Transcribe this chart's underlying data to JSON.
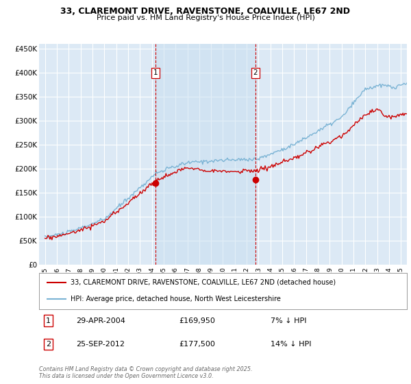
{
  "title": "33, CLAREMONT DRIVE, RAVENSTONE, COALVILLE, LE67 2ND",
  "subtitle": "Price paid vs. HM Land Registry's House Price Index (HPI)",
  "background_color": "#ffffff",
  "plot_bg_color": "#dce9f5",
  "grid_color": "#ffffff",
  "hpi_color": "#7ab3d4",
  "price_color": "#cc0000",
  "vline_color": "#cc0000",
  "purchases": [
    {
      "date_num": 2004.33,
      "price": 169950,
      "label": "1",
      "date_str": "29-APR-2004",
      "pct": "7% ↓ HPI"
    },
    {
      "date_num": 2012.73,
      "price": 177500,
      "label": "2",
      "date_str": "25-SEP-2012",
      "pct": "14% ↓ HPI"
    }
  ],
  "legend_line1": "33, CLAREMONT DRIVE, RAVENSTONE, COALVILLE, LE67 2ND (detached house)",
  "legend_line2": "HPI: Average price, detached house, North West Leicestershire",
  "footnote": "Contains HM Land Registry data © Crown copyright and database right 2025.\nThis data is licensed under the Open Government Licence v3.0.",
  "ylim": [
    0,
    460000
  ],
  "xlim": [
    1994.5,
    2025.5
  ],
  "yticks": [
    0,
    50000,
    100000,
    150000,
    200000,
    250000,
    300000,
    350000,
    400000,
    450000
  ],
  "ytick_labels": [
    "£0",
    "£50K",
    "£100K",
    "£150K",
    "£200K",
    "£250K",
    "£300K",
    "£350K",
    "£400K",
    "£450K"
  ]
}
